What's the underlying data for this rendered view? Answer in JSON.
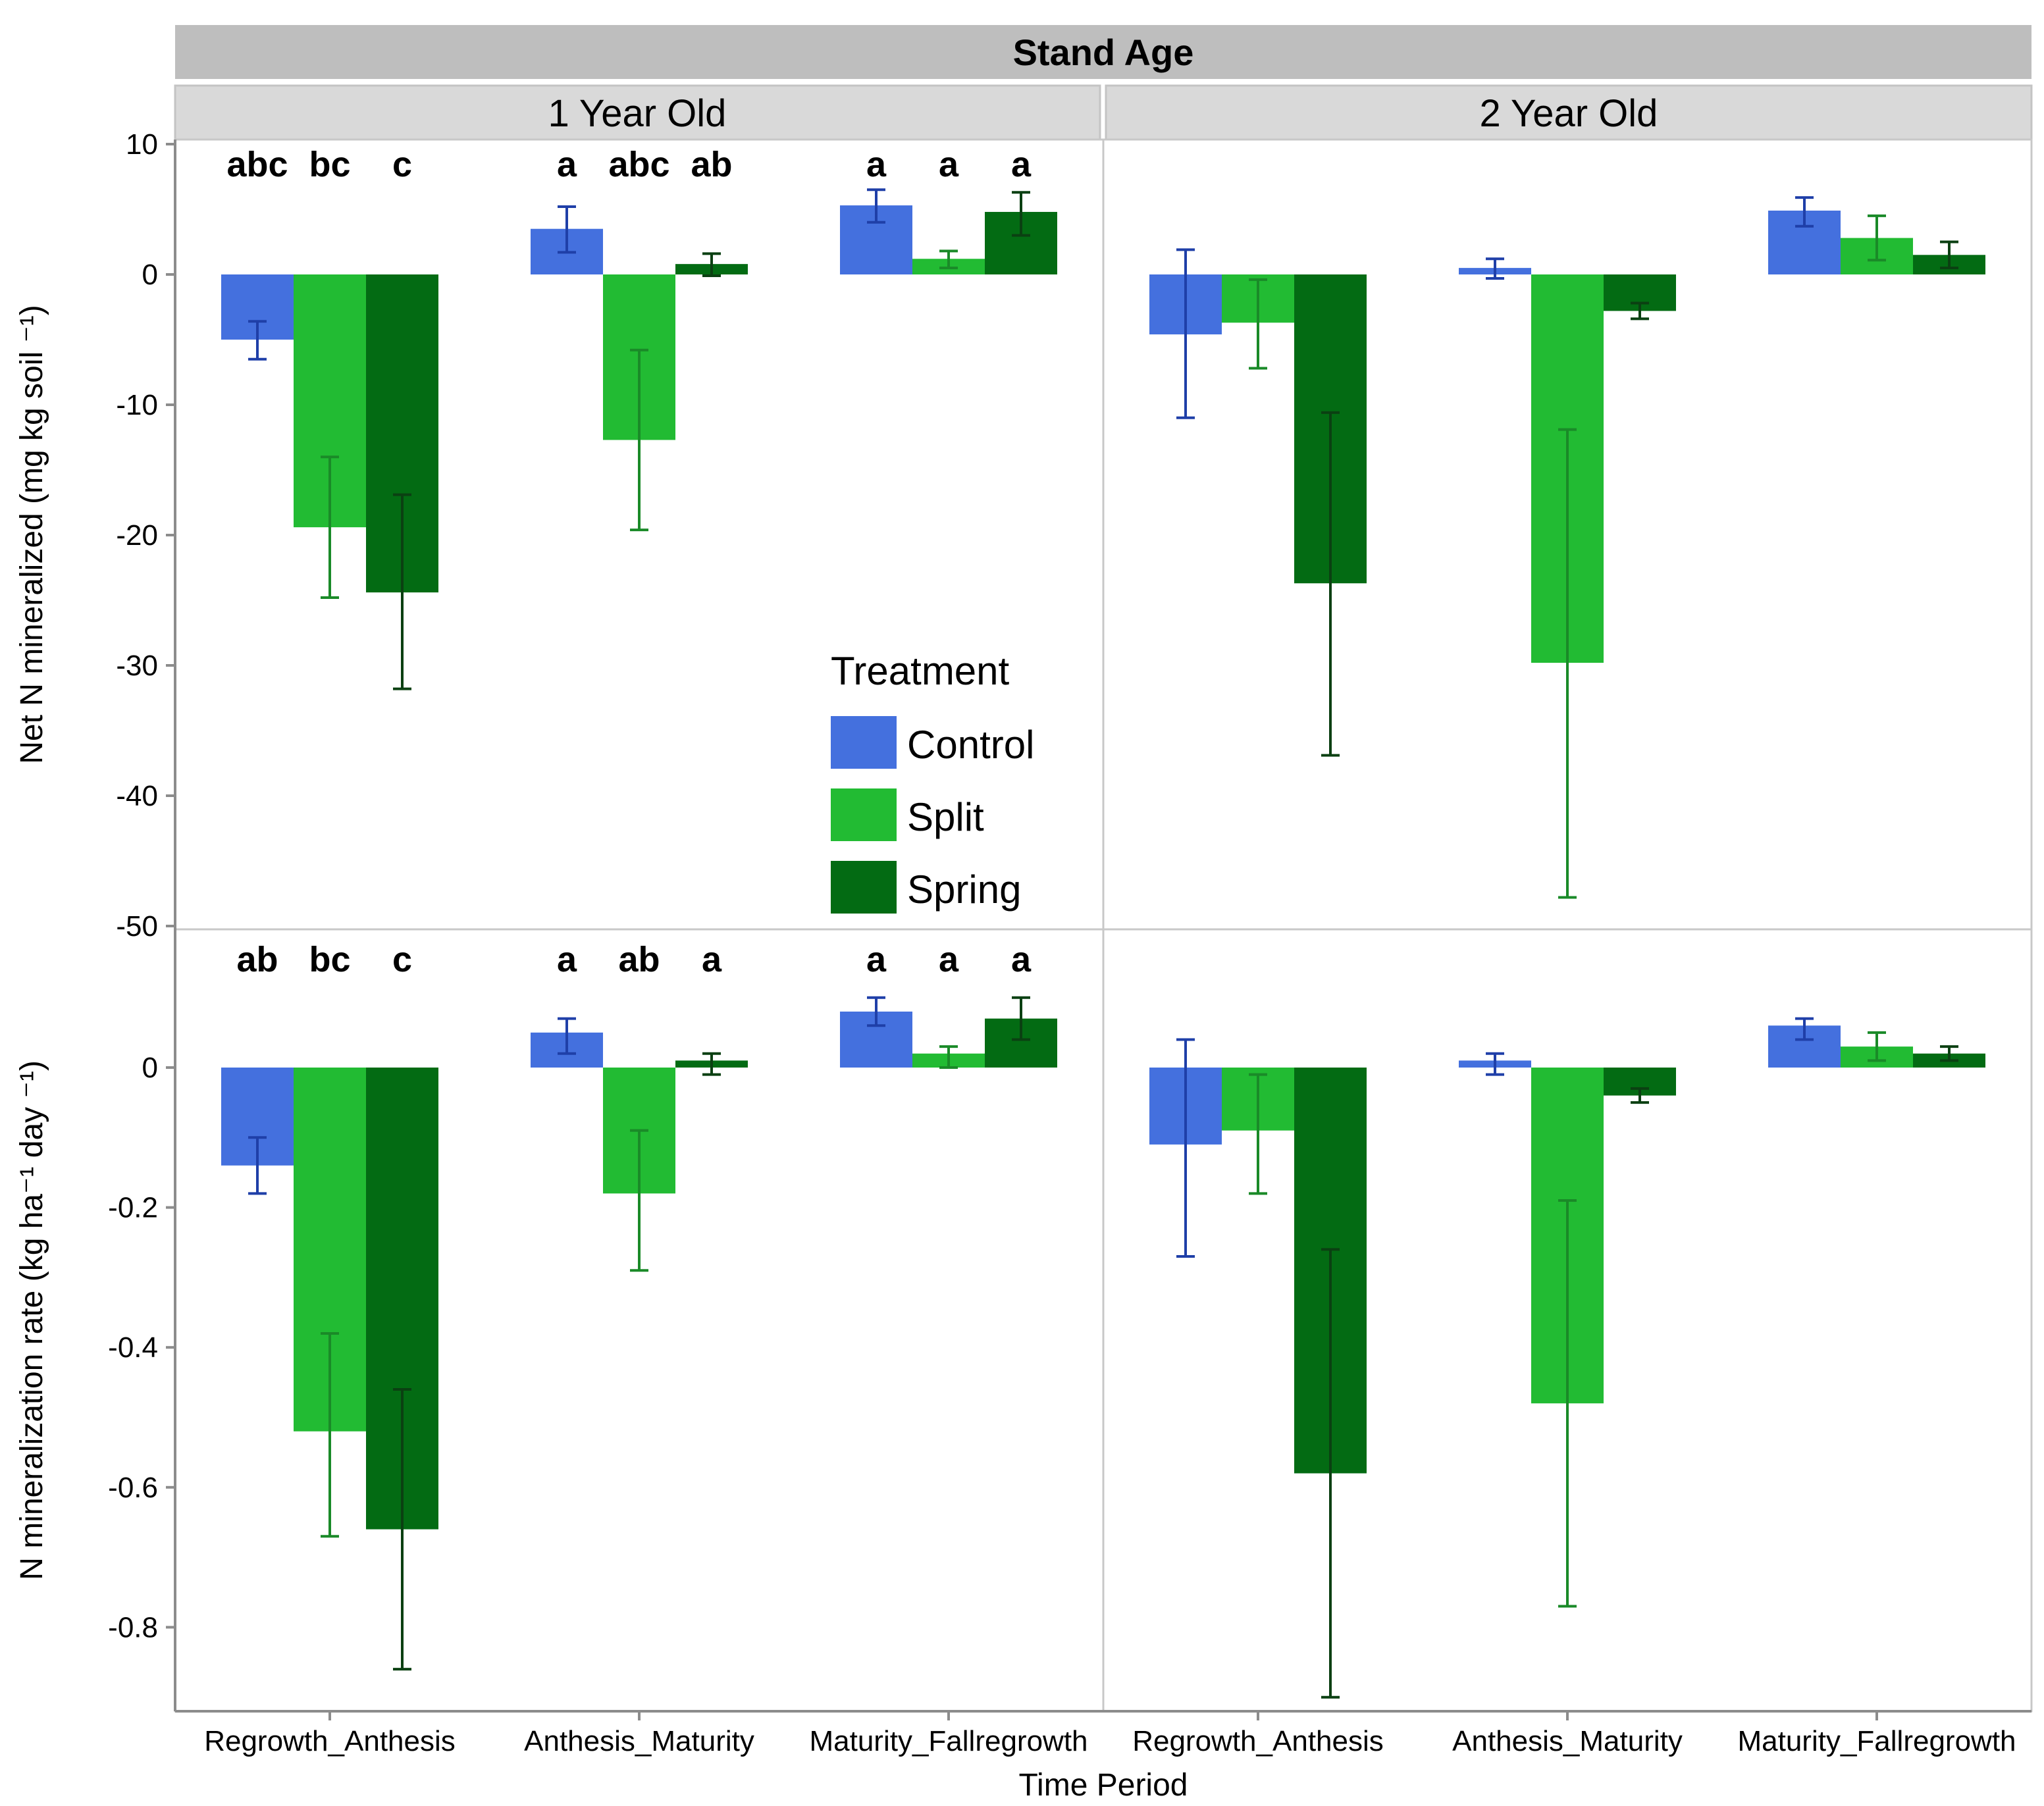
{
  "chart_data": {
    "type": "bar",
    "facet_header": "Stand Age",
    "columns": [
      "1 Year Old",
      "2 Year Old"
    ],
    "categories": [
      "Regrowth_Anthesis",
      "Anthesis_Maturity",
      "Maturity_Fallregrowth"
    ],
    "xlabel": "Time Period",
    "legend": {
      "title": "Treatment",
      "placement": "inside-top-left-panel-bottom",
      "items": [
        {
          "name": "Control",
          "color": "#4470DE"
        },
        {
          "name": "Split",
          "color": "#22BB33"
        },
        {
          "name": "Spring",
          "color": "#036B13"
        }
      ]
    },
    "series_colors": {
      "Control": "#4470DE",
      "Split": "#22BB33",
      "Spring": "#036B13"
    },
    "errorbar_colors": {
      "Control": "#1F3FA8",
      "Split": "#1A8A28",
      "Spring": "#0B4012"
    },
    "rows": [
      {
        "ylabel": "Net N mineralized (mg kg soil ⁻¹)",
        "ylim": [
          -50,
          10
        ],
        "yticks": [
          10,
          0,
          -10,
          -20,
          -30,
          -40,
          -50
        ],
        "ytick_labels": [
          "10",
          "0",
          "-10",
          "-20",
          "-30",
          "-40",
          "-50"
        ],
        "panels": [
          {
            "column": "1 Year Old",
            "series": [
              {
                "name": "Control",
                "values": [
                  -5.0,
                  3.5,
                  5.3
                ],
                "err_low": [
                  -6.5,
                  1.7,
                  4.0
                ],
                "err_high": [
                  -3.6,
                  5.2,
                  6.5
                ]
              },
              {
                "name": "Split",
                "values": [
                  -19.4,
                  -12.7,
                  1.2
                ],
                "err_low": [
                  -24.8,
                  -19.6,
                  0.5
                ],
                "err_high": [
                  -14.0,
                  -5.8,
                  1.8
                ]
              },
              {
                "name": "Spring",
                "values": [
                  -24.4,
                  0.8,
                  4.8
                ],
                "err_low": [
                  -31.8,
                  -0.1,
                  3.0
                ],
                "err_high": [
                  -16.9,
                  1.6,
                  6.3
                ]
              }
            ],
            "letters": [
              [
                "abc",
                "bc",
                "c"
              ],
              [
                "a",
                "abc",
                "ab"
              ],
              [
                "a",
                "a",
                "a"
              ]
            ]
          },
          {
            "column": "2 Year Old",
            "series": [
              {
                "name": "Control",
                "values": [
                  -4.6,
                  0.5,
                  4.9
                ],
                "err_low": [
                  -11.0,
                  -0.3,
                  3.7
                ],
                "err_high": [
                  1.9,
                  1.2,
                  5.9
                ]
              },
              {
                "name": "Split",
                "values": [
                  -3.7,
                  -29.8,
                  2.8
                ],
                "err_low": [
                  -7.2,
                  -47.8,
                  1.1
                ],
                "err_high": [
                  -0.4,
                  -11.9,
                  4.5
                ]
              },
              {
                "name": "Spring",
                "values": [
                  -23.7,
                  -2.8,
                  1.5
                ],
                "err_low": [
                  -36.9,
                  -3.4,
                  0.5
                ],
                "err_high": [
                  -10.6,
                  -2.2,
                  2.5
                ]
              }
            ],
            "letters": []
          }
        ]
      },
      {
        "ylabel": "N mineralization rate (kg ha⁻¹ day ⁻¹)",
        "ylim": [
          -0.92,
          0.2
        ],
        "yticks": [
          0,
          -0.2,
          -0.4,
          -0.6,
          -0.8
        ],
        "ytick_labels": [
          "0",
          "-0.2",
          "-0.4",
          "-0.6",
          "-0.8"
        ],
        "panels": [
          {
            "column": "1 Year Old",
            "series": [
              {
                "name": "Control",
                "values": [
                  -0.14,
                  0.05,
                  0.08
                ],
                "err_low": [
                  -0.18,
                  0.02,
                  0.06
                ],
                "err_high": [
                  -0.1,
                  0.07,
                  0.1
                ]
              },
              {
                "name": "Split",
                "values": [
                  -0.52,
                  -0.18,
                  0.02
                ],
                "err_low": [
                  -0.67,
                  -0.29,
                  0.0
                ],
                "err_high": [
                  -0.38,
                  -0.09,
                  0.03
                ]
              },
              {
                "name": "Spring",
                "values": [
                  -0.66,
                  0.01,
                  0.07
                ],
                "err_low": [
                  -0.86,
                  -0.01,
                  0.04
                ],
                "err_high": [
                  -0.46,
                  0.02,
                  0.1
                ]
              }
            ],
            "letters": [
              [
                "ab",
                "bc",
                "c"
              ],
              [
                "a",
                "ab",
                "a"
              ],
              [
                "a",
                "a",
                "a"
              ]
            ]
          },
          {
            "column": "2 Year Old",
            "series": [
              {
                "name": "Control",
                "values": [
                  -0.11,
                  0.01,
                  0.06
                ],
                "err_low": [
                  -0.27,
                  -0.01,
                  0.04
                ],
                "err_high": [
                  0.04,
                  0.02,
                  0.07
                ]
              },
              {
                "name": "Split",
                "values": [
                  -0.09,
                  -0.48,
                  0.03
                ],
                "err_low": [
                  -0.18,
                  -0.77,
                  0.01
                ],
                "err_high": [
                  -0.01,
                  -0.19,
                  0.05
                ]
              },
              {
                "name": "Spring",
                "values": [
                  -0.58,
                  -0.04,
                  0.02
                ],
                "err_low": [
                  -0.9,
                  -0.05,
                  0.01
                ],
                "err_high": [
                  -0.26,
                  -0.03,
                  0.03
                ]
              }
            ],
            "letters": []
          }
        ]
      }
    ]
  }
}
